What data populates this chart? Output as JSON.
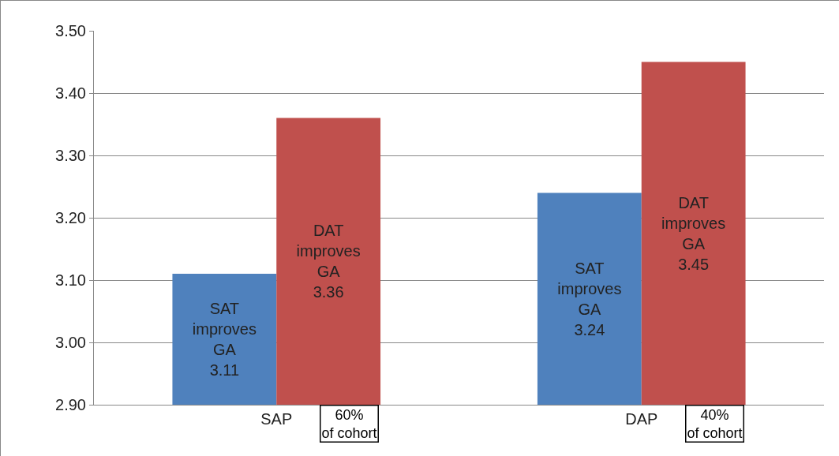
{
  "chart_data": {
    "type": "bar",
    "categories": [
      "SAP",
      "DAP"
    ],
    "series": [
      {
        "color": "#4f81bd",
        "values": [
          3.11,
          3.24
        ],
        "value_labels": [
          "SAT improves GA 3.11",
          "SAT improves GA 3.24"
        ]
      },
      {
        "color": "#c0504d",
        "values": [
          3.36,
          3.45
        ],
        "value_labels": [
          "DAT improves GA 3.36",
          "DAT improves GA 3.45"
        ]
      }
    ],
    "ylim": [
      2.9,
      3.5
    ],
    "yticks": [
      {
        "value": 2.9,
        "label": "2.90"
      },
      {
        "value": 3.0,
        "label": "3.00"
      },
      {
        "value": 3.1,
        "label": "3.10"
      },
      {
        "value": 3.2,
        "label": "3.20"
      },
      {
        "value": 3.3,
        "label": "3.30"
      },
      {
        "value": 3.4,
        "label": "3.40"
      },
      {
        "value": 3.5,
        "label": "3.50"
      }
    ],
    "grid": "y",
    "annotations": [
      "60% of cohort",
      "40% of cohort"
    ]
  }
}
